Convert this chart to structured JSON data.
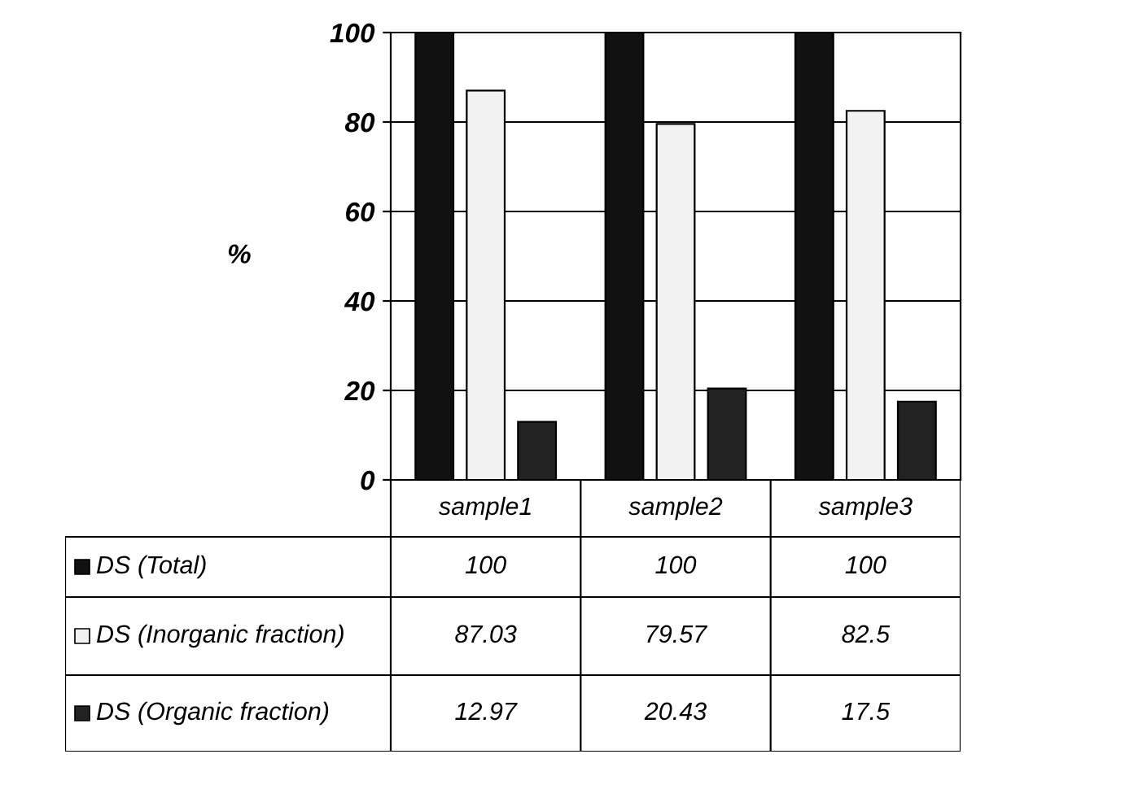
{
  "chart_data": {
    "type": "bar",
    "ylabel": "%",
    "categories": [
      "sample1",
      "sample2",
      "sample3"
    ],
    "series": [
      {
        "name": "DS (Total)",
        "color": "#111111",
        "values": [
          100,
          100,
          100
        ]
      },
      {
        "name": "DS (Inorganic fraction)",
        "color": "#f2f2f2",
        "values": [
          87.03,
          79.57,
          82.5
        ]
      },
      {
        "name": "DS (Organic fraction)",
        "color": "#222222",
        "values": [
          12.97,
          20.43,
          17.5
        ]
      }
    ],
    "ylim": [
      0,
      100
    ],
    "yticks": [
      0,
      20,
      40,
      60,
      80,
      100
    ],
    "grid": "y",
    "legend": "bottom",
    "data_labels": true
  }
}
